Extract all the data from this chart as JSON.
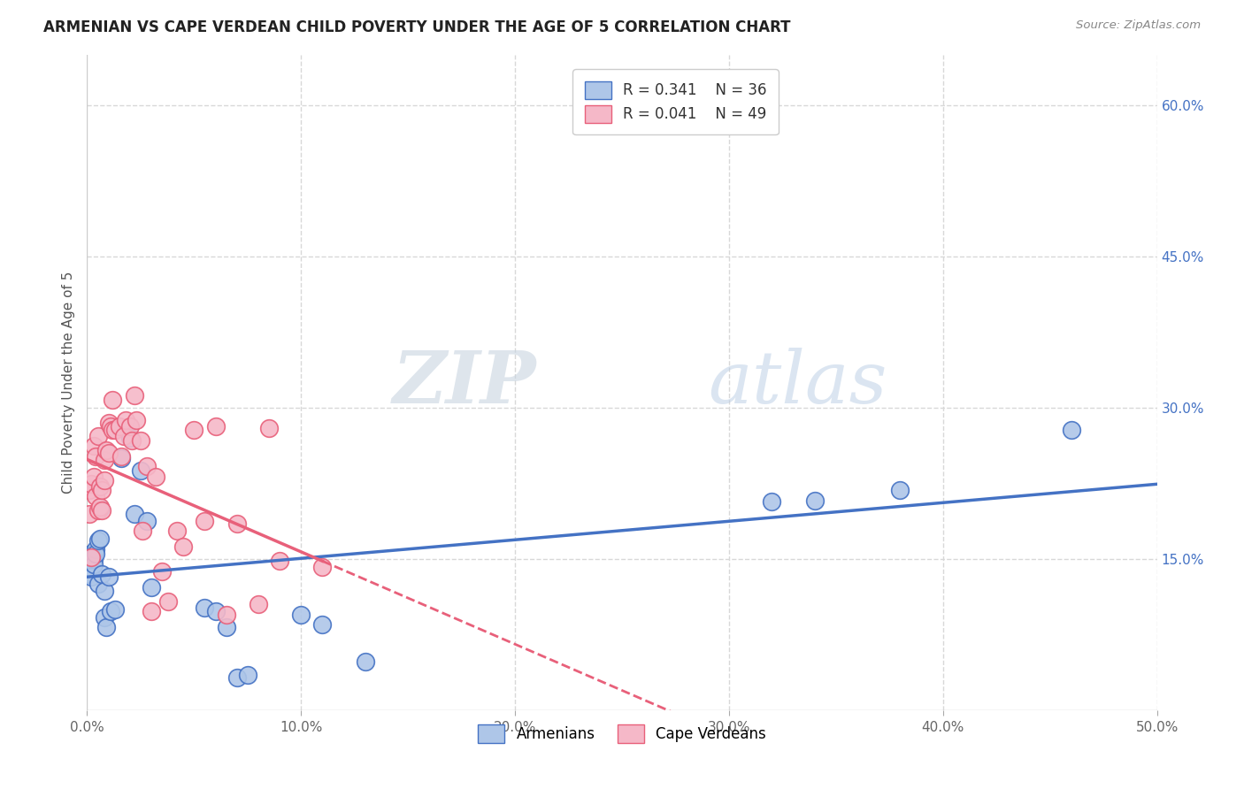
{
  "title": "ARMENIAN VS CAPE VERDEAN CHILD POVERTY UNDER THE AGE OF 5 CORRELATION CHART",
  "source": "Source: ZipAtlas.com",
  "ylabel": "Child Poverty Under the Age of 5",
  "xlabel": "",
  "xlim": [
    0,
    0.5
  ],
  "ylim": [
    0,
    0.65
  ],
  "xticks": [
    0.0,
    0.1,
    0.2,
    0.3,
    0.4,
    0.5
  ],
  "yticks_right": [
    0.15,
    0.3,
    0.45,
    0.6
  ],
  "armenian_R": 0.341,
  "armenian_N": 36,
  "capeverdean_R": 0.041,
  "capeverdean_N": 49,
  "armenian_color": "#aec6e8",
  "capeverdean_color": "#f5b8c8",
  "armenian_line_color": "#4472c4",
  "capeverdean_line_color": "#e8607a",
  "background_color": "#ffffff",
  "grid_color": "#d8d8d8",
  "watermark_zip": "ZIP",
  "watermark_atlas": "atlas",
  "armenian_x": [
    0.001,
    0.002,
    0.002,
    0.003,
    0.003,
    0.004,
    0.004,
    0.005,
    0.005,
    0.006,
    0.006,
    0.007,
    0.008,
    0.008,
    0.009,
    0.01,
    0.011,
    0.013,
    0.016,
    0.02,
    0.022,
    0.025,
    0.028,
    0.03,
    0.055,
    0.06,
    0.065,
    0.07,
    0.075,
    0.1,
    0.11,
    0.13,
    0.32,
    0.34,
    0.38,
    0.46
  ],
  "armenian_y": [
    0.135,
    0.132,
    0.155,
    0.15,
    0.145,
    0.16,
    0.155,
    0.125,
    0.168,
    0.2,
    0.17,
    0.135,
    0.118,
    0.092,
    0.082,
    0.132,
    0.098,
    0.1,
    0.25,
    0.27,
    0.195,
    0.238,
    0.188,
    0.122,
    0.102,
    0.098,
    0.082,
    0.032,
    0.035,
    0.095,
    0.085,
    0.048,
    0.207,
    0.208,
    0.218,
    0.278
  ],
  "capeverdean_x": [
    0.001,
    0.001,
    0.002,
    0.002,
    0.003,
    0.003,
    0.004,
    0.004,
    0.005,
    0.005,
    0.006,
    0.006,
    0.007,
    0.007,
    0.008,
    0.008,
    0.009,
    0.01,
    0.01,
    0.011,
    0.012,
    0.012,
    0.013,
    0.015,
    0.016,
    0.017,
    0.018,
    0.02,
    0.021,
    0.022,
    0.023,
    0.025,
    0.026,
    0.028,
    0.03,
    0.032,
    0.035,
    0.038,
    0.042,
    0.045,
    0.05,
    0.055,
    0.06,
    0.065,
    0.07,
    0.08,
    0.085,
    0.09,
    0.11
  ],
  "capeverdean_y": [
    0.218,
    0.195,
    0.225,
    0.152,
    0.262,
    0.232,
    0.252,
    0.212,
    0.272,
    0.198,
    0.202,
    0.222,
    0.218,
    0.198,
    0.248,
    0.228,
    0.258,
    0.285,
    0.255,
    0.282,
    0.308,
    0.278,
    0.278,
    0.282,
    0.252,
    0.272,
    0.288,
    0.282,
    0.268,
    0.312,
    0.288,
    0.268,
    0.178,
    0.242,
    0.098,
    0.232,
    0.138,
    0.108,
    0.178,
    0.162,
    0.278,
    0.188,
    0.282,
    0.095,
    0.185,
    0.105,
    0.28,
    0.148,
    0.142
  ]
}
